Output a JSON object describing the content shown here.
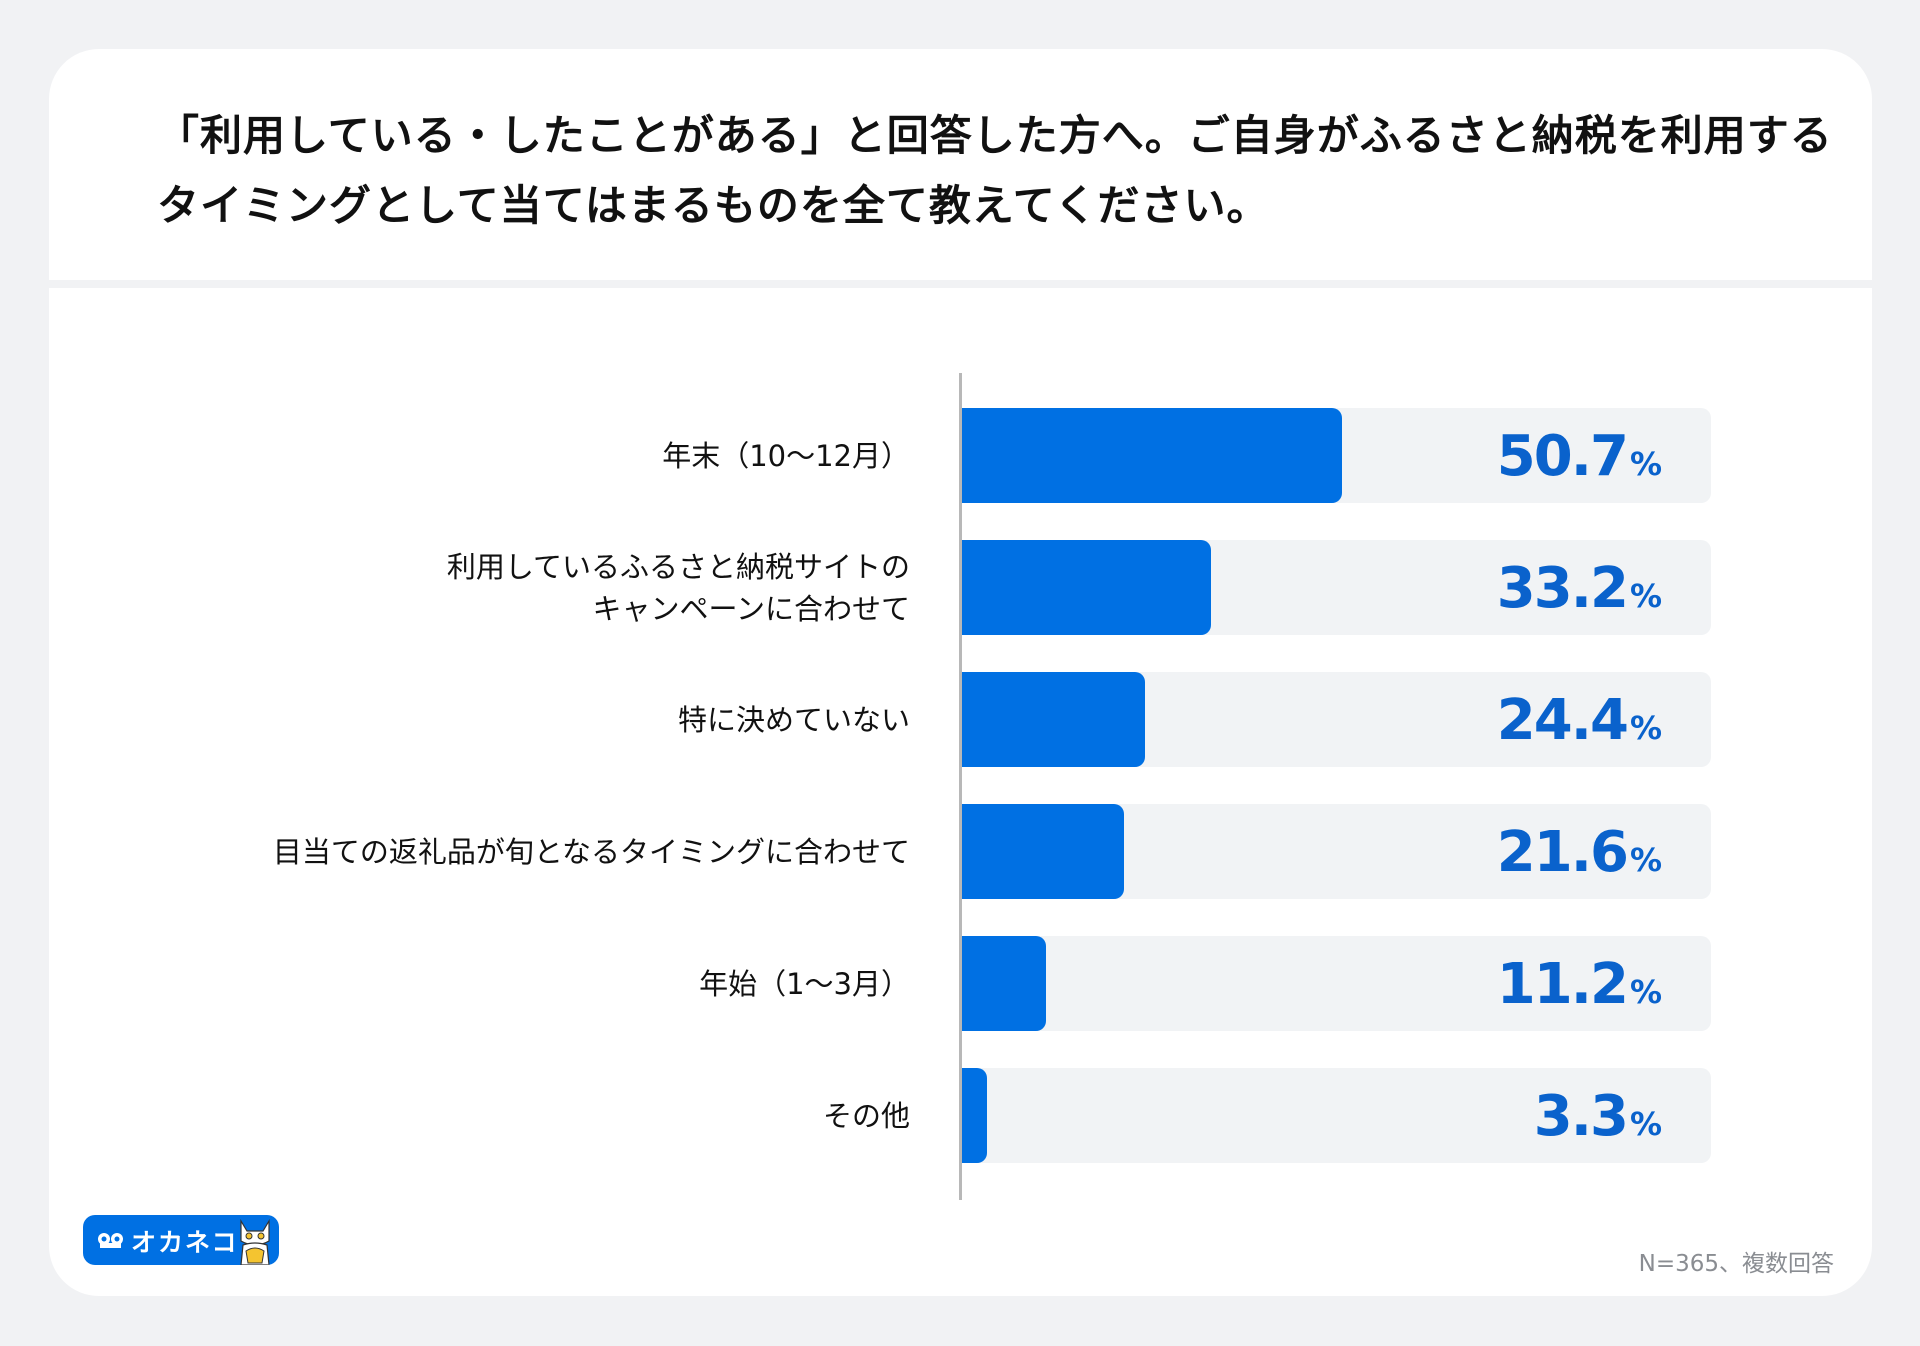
{
  "title": "「利用している・したことがある」と回答した方へ。ご自身がふるさと納税を利用するタイミングとして当てはまるものを全て教えてください。",
  "footer_note": "N=365、複数回答",
  "logo_text": "オカネコ",
  "colors": {
    "bar": "#0070e3",
    "track": "#f1f3f5",
    "value_text": "#0a62cc",
    "background": "#f1f2f4"
  },
  "chart_data": {
    "type": "bar",
    "orientation": "horizontal",
    "categories": [
      "年末（10〜12月）",
      "利用しているふるさと納税サイトの\nキャンペーンに合わせて",
      "特に決めていない",
      "目当ての返礼品が旬となるタイミングに合わせて",
      "年始（1〜3月）",
      "その他"
    ],
    "values": [
      50.7,
      33.2,
      24.4,
      21.6,
      11.2,
      3.3
    ],
    "value_labels": [
      "50.7",
      "33.2",
      "24.4",
      "21.6",
      "11.2",
      "3.3"
    ],
    "unit": "%",
    "xlim": [
      0,
      100
    ],
    "grid": false,
    "legend": "none"
  }
}
